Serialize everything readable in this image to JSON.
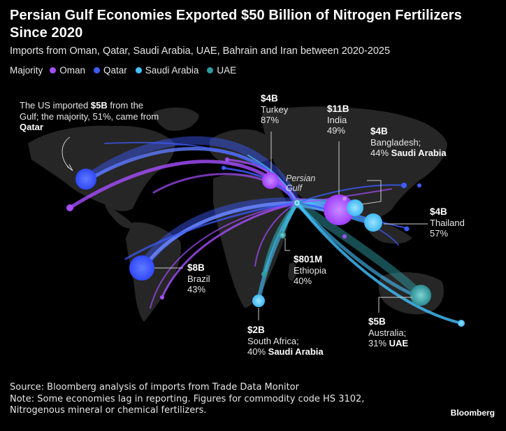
{
  "title": "Persian Gulf Economies Exported $50 Billion of Nitrogen Fertilizers Since 2020",
  "subtitle": "Imports from Oman, Qatar, Saudi Arabia, UAE, Bahrain and Iran between 2020-2025",
  "legend": {
    "lead": "Majority",
    "items": [
      {
        "name": "Oman",
        "color": "#a64dff"
      },
      {
        "name": "Qatar",
        "color": "#3d5cff"
      },
      {
        "name": "Saudi Arabia",
        "color": "#44c3ff"
      },
      {
        "name": "UAE",
        "color": "#2e9aa0"
      }
    ]
  },
  "hub_label": "Persian Gulf",
  "annotations": {
    "us": {
      "pre": "The US imported ",
      "value": "$5B",
      "mid": " from the Gulf; the majority, 51%, came from ",
      "country": "Qatar"
    },
    "turkey": {
      "value": "$4B",
      "name": "Turkey",
      "share": "87%"
    },
    "india": {
      "value": "$11B",
      "name": "India",
      "share": "49%"
    },
    "bangladesh": {
      "value": "$4B",
      "name": "Bangladesh;",
      "share": "44%",
      "country": "Saudi Arabia"
    },
    "thailand": {
      "value": "$4B",
      "name": "Thailand",
      "share": "57%"
    },
    "brazil": {
      "value": "$8B",
      "name": "Brazil",
      "share": "43%"
    },
    "ethiopia": {
      "value": "$801M",
      "name": "Ethiopia",
      "share": "40%"
    },
    "australia": {
      "value": "$5B",
      "name": "Australia;",
      "share": "31%",
      "country": "UAE"
    },
    "south_africa": {
      "value": "$2B",
      "name": "South Africa;",
      "share": "40%",
      "country": "Saudi Arabia"
    }
  },
  "destinations": [
    {
      "name": "US",
      "value_usd_billion": 5,
      "majority": "Qatar",
      "majority_share_pct": 51
    },
    {
      "name": "Turkey",
      "value_usd_billion": 4,
      "majority": "Oman",
      "majority_share_pct": 87
    },
    {
      "name": "India",
      "value_usd_billion": 11,
      "majority": "Oman",
      "majority_share_pct": 49
    },
    {
      "name": "Bangladesh",
      "value_usd_billion": 4,
      "majority": "Saudi Arabia",
      "majority_share_pct": 44
    },
    {
      "name": "Thailand",
      "value_usd_billion": 4,
      "majority": "Saudi Arabia",
      "majority_share_pct": 57
    },
    {
      "name": "Brazil",
      "value_usd_billion": 8,
      "majority": "Qatar",
      "majority_share_pct": 43
    },
    {
      "name": "Ethiopia",
      "value_usd_billion": 0.801,
      "majority": "UAE",
      "majority_share_pct": 40
    },
    {
      "name": "Australia",
      "value_usd_billion": 5,
      "majority": "UAE",
      "majority_share_pct": 31
    },
    {
      "name": "South Africa",
      "value_usd_billion": 2,
      "majority": "Saudi Arabia",
      "majority_share_pct": 40
    }
  ],
  "source": "Source: Bloomberg analysis of imports from Trade Data Monitor",
  "note": "Note: Some economies lag in reporting. Figures for commodity code HS 3102, Nitrogenous mineral or chemical fertilizers.",
  "brand": "Bloomberg"
}
